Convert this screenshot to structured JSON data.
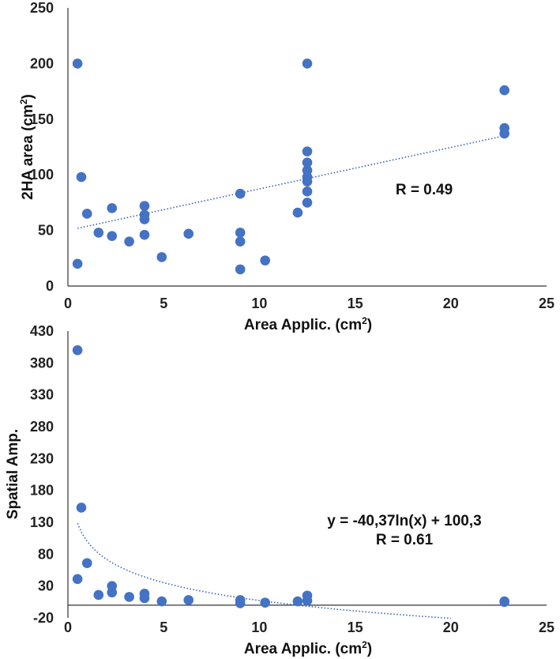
{
  "colors": {
    "point": "#4472c4",
    "trend": "#3a62b3",
    "axis": "#333333"
  },
  "chart_data": [
    {
      "type": "scatter",
      "title": "",
      "xlabel": "Area Applic. (cm",
      "xlabel_sup": "2",
      "xlabel_end": ")",
      "ylabel": "2HA area (cm",
      "ylabel_sup": "2",
      "ylabel_end": ")",
      "xlim": [
        0,
        25
      ],
      "ylim": [
        0,
        250
      ],
      "xticks": [
        0,
        5,
        10,
        15,
        20,
        25
      ],
      "yticks": [
        0,
        50,
        100,
        150,
        200,
        250
      ],
      "grid": false,
      "trendline": {
        "kind": "linear",
        "x_range": [
          0.5,
          22.8
        ],
        "slope": 3.73,
        "intercept": 50
      },
      "annotation": [
        "R = 0.49"
      ],
      "points": [
        [
          0.5,
          200
        ],
        [
          0.5,
          20
        ],
        [
          0.7,
          98
        ],
        [
          1.0,
          65
        ],
        [
          1.6,
          48
        ],
        [
          2.3,
          70
        ],
        [
          2.3,
          45
        ],
        [
          3.2,
          40
        ],
        [
          4.0,
          72
        ],
        [
          4.0,
          64
        ],
        [
          4.0,
          60
        ],
        [
          4.0,
          46
        ],
        [
          4.9,
          26
        ],
        [
          6.3,
          47
        ],
        [
          9.0,
          83
        ],
        [
          9.0,
          48
        ],
        [
          9.0,
          40
        ],
        [
          9.0,
          15
        ],
        [
          10.3,
          23
        ],
        [
          12.0,
          66
        ],
        [
          12.5,
          200
        ],
        [
          12.5,
          121
        ],
        [
          12.5,
          111
        ],
        [
          12.5,
          104
        ],
        [
          12.5,
          98
        ],
        [
          12.5,
          94
        ],
        [
          12.5,
          85
        ],
        [
          12.5,
          75
        ],
        [
          22.8,
          176
        ],
        [
          22.8,
          142
        ],
        [
          22.8,
          137
        ]
      ]
    },
    {
      "type": "scatter",
      "title": "",
      "xlabel": "Area Applic. (cm",
      "xlabel_sup": "2",
      "xlabel_end": ")",
      "ylabel": "Spatial Amp.",
      "xlim": [
        0,
        25
      ],
      "ylim": [
        -20,
        430
      ],
      "xticks": [
        0,
        5,
        10,
        15,
        20,
        25
      ],
      "yticks": [
        -20,
        30,
        80,
        130,
        180,
        230,
        280,
        330,
        380,
        430
      ],
      "grid": false,
      "trendline": {
        "kind": "log",
        "x_range": [
          0.5,
          20
        ],
        "a": -40.37,
        "b": 100.3
      },
      "annotation": [
        "y = -40,37ln(x) + 100,3",
        "R = 0.61"
      ],
      "points": [
        [
          0.5,
          400
        ],
        [
          0.5,
          41
        ],
        [
          0.7,
          153
        ],
        [
          1.0,
          66
        ],
        [
          1.6,
          16
        ],
        [
          2.3,
          30
        ],
        [
          2.3,
          20
        ],
        [
          3.2,
          13
        ],
        [
          4.0,
          18
        ],
        [
          4.0,
          11
        ],
        [
          4.9,
          6
        ],
        [
          6.3,
          8
        ],
        [
          9.0,
          8
        ],
        [
          9.0,
          3
        ],
        [
          10.3,
          4
        ],
        [
          12.0,
          6
        ],
        [
          12.5,
          15
        ],
        [
          12.5,
          7
        ],
        [
          22.8,
          6
        ],
        [
          22.8,
          5
        ]
      ]
    }
  ]
}
